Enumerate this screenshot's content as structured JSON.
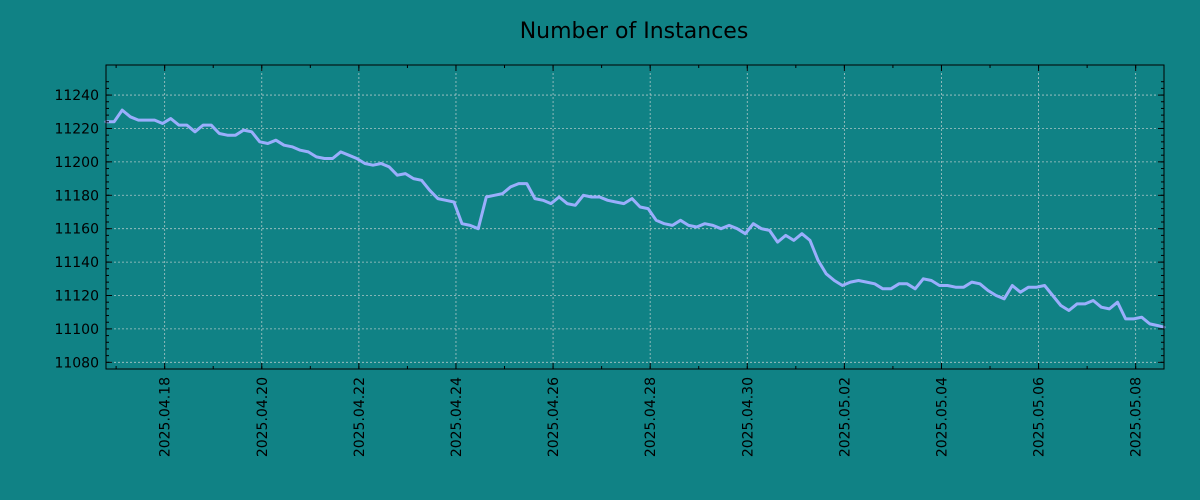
{
  "colors": {
    "background": "#108285",
    "line": "#9aaefc"
  },
  "chart_data": {
    "type": "line",
    "title": "Number of Instances",
    "xlabel": "",
    "ylabel": "",
    "grid": true,
    "xlim": [
      "2025-04-16T19:00",
      "2025-05-08T14:00"
    ],
    "ylim": [
      11076,
      11258
    ],
    "yticks": [
      11080,
      11100,
      11120,
      11140,
      11160,
      11180,
      11200,
      11220,
      11240
    ],
    "xticks": [
      "2025.04.18",
      "2025.04.20",
      "2025.04.22",
      "2025.04.24",
      "2025.04.26",
      "2025.04.28",
      "2025.04.30",
      "2025.05.02",
      "2025.05.04",
      "2025.05.06",
      "2025.05.08"
    ],
    "series": [
      {
        "x": [
          "2025-04-16T19:00",
          "2025-04-16T23:00",
          "2025-04-17T03:00",
          "2025-04-17T07:00",
          "2025-04-17T11:00",
          "2025-04-17T15:00",
          "2025-04-17T19:00",
          "2025-04-17T23:00",
          "2025-04-18T03:00",
          "2025-04-18T07:00",
          "2025-04-18T11:00",
          "2025-04-18T15:00",
          "2025-04-18T19:00",
          "2025-04-18T23:00",
          "2025-04-19T03:00",
          "2025-04-19T07:00",
          "2025-04-19T11:00",
          "2025-04-19T15:00",
          "2025-04-19T19:00",
          "2025-04-19T23:00",
          "2025-04-20T03:00",
          "2025-04-20T07:00",
          "2025-04-20T11:00",
          "2025-04-20T15:00",
          "2025-04-20T19:00",
          "2025-04-20T23:00",
          "2025-04-21T03:00",
          "2025-04-21T07:00",
          "2025-04-21T11:00",
          "2025-04-21T15:00",
          "2025-04-21T19:00",
          "2025-04-21T23:00",
          "2025-04-22T03:00",
          "2025-04-22T07:00",
          "2025-04-22T11:00",
          "2025-04-22T15:00",
          "2025-04-22T19:00",
          "2025-04-22T23:00",
          "2025-04-23T03:00",
          "2025-04-23T07:00",
          "2025-04-23T11:00",
          "2025-04-23T15:00",
          "2025-04-23T19:00",
          "2025-04-23T23:00",
          "2025-04-24T03:00",
          "2025-04-24T07:00",
          "2025-04-24T11:00",
          "2025-04-24T15:00",
          "2025-04-24T19:00",
          "2025-04-24T23:00",
          "2025-04-25T03:00",
          "2025-04-25T07:00",
          "2025-04-25T11:00",
          "2025-04-25T15:00",
          "2025-04-25T19:00",
          "2025-04-25T23:00",
          "2025-04-26T03:00",
          "2025-04-26T07:00",
          "2025-04-26T11:00",
          "2025-04-26T15:00",
          "2025-04-26T19:00",
          "2025-04-26T23:00",
          "2025-04-27T03:00",
          "2025-04-27T07:00",
          "2025-04-27T11:00",
          "2025-04-27T15:00",
          "2025-04-27T19:00",
          "2025-04-27T23:00",
          "2025-04-28T03:00",
          "2025-04-28T07:00",
          "2025-04-28T11:00",
          "2025-04-28T15:00",
          "2025-04-28T19:00",
          "2025-04-28T23:00",
          "2025-04-29T03:00",
          "2025-04-29T07:00",
          "2025-04-29T11:00",
          "2025-04-29T15:00",
          "2025-04-29T19:00",
          "2025-04-29T23:00",
          "2025-04-30T03:00",
          "2025-04-30T07:00",
          "2025-04-30T11:00",
          "2025-04-30T15:00",
          "2025-04-30T19:00",
          "2025-04-30T23:00",
          "2025-05-01T03:00",
          "2025-05-01T07:00",
          "2025-05-01T11:00",
          "2025-05-01T15:00",
          "2025-05-01T19:00",
          "2025-05-01T23:00",
          "2025-05-02T03:00",
          "2025-05-02T07:00",
          "2025-05-02T11:00",
          "2025-05-02T15:00",
          "2025-05-02T19:00",
          "2025-05-02T23:00",
          "2025-05-03T03:00",
          "2025-05-03T07:00",
          "2025-05-03T11:00",
          "2025-05-03T15:00",
          "2025-05-03T19:00",
          "2025-05-03T23:00",
          "2025-05-04T03:00",
          "2025-05-04T07:00",
          "2025-05-04T11:00",
          "2025-05-04T15:00",
          "2025-05-04T19:00",
          "2025-05-04T23:00",
          "2025-05-05T03:00",
          "2025-05-05T07:00",
          "2025-05-05T11:00",
          "2025-05-05T15:00",
          "2025-05-05T19:00",
          "2025-05-05T23:00",
          "2025-05-06T03:00",
          "2025-05-06T07:00",
          "2025-05-06T11:00",
          "2025-05-06T15:00",
          "2025-05-06T19:00",
          "2025-05-06T23:00",
          "2025-05-07T03:00",
          "2025-05-07T07:00",
          "2025-05-07T11:00",
          "2025-05-07T15:00",
          "2025-05-07T19:00",
          "2025-05-07T23:00",
          "2025-05-08T03:00",
          "2025-05-08T07:00",
          "2025-05-08T11:00",
          "2025-05-08T14:00"
        ],
        "values": [
          11224,
          11224,
          11231,
          11227,
          11225,
          11225,
          11225,
          11223,
          11226,
          11222,
          11222,
          11218,
          11222,
          11222,
          11217,
          11216,
          11216,
          11219,
          11218,
          11212,
          11211,
          11213,
          11210,
          11209,
          11207,
          11206,
          11203,
          11202,
          11202,
          11206,
          11204,
          11202,
          11199,
          11198,
          11199,
          11197,
          11192,
          11193,
          11190,
          11189,
          11183,
          11178,
          11177,
          11176,
          11163,
          11162,
          11160,
          11179,
          11180,
          11181,
          11185,
          11187,
          11187,
          11178,
          11177,
          11175,
          11179,
          11175,
          11174,
          11180,
          11179,
          11179,
          11177,
          11176,
          11175,
          11178,
          11173,
          11172,
          11165,
          11163,
          11162,
          11165,
          11162,
          11161,
          11163,
          11162,
          11160,
          11162,
          11160,
          11157,
          11163,
          11160,
          11159,
          11152,
          11156,
          11153,
          11157,
          11153,
          11141,
          11133,
          11129,
          11126,
          11128,
          11129,
          11128,
          11127,
          11124,
          11124,
          11127,
          11127,
          11124,
          11130,
          11129,
          11126,
          11126,
          11125,
          11125,
          11128,
          11127,
          11123,
          11120,
          11118,
          11126,
          11122,
          11125,
          11125,
          11126,
          11120,
          11114,
          11111,
          11115,
          11115,
          11117,
          11113,
          11112,
          11116,
          11106,
          11106,
          11107,
          11103,
          11102,
          11101
        ]
      }
    ]
  }
}
